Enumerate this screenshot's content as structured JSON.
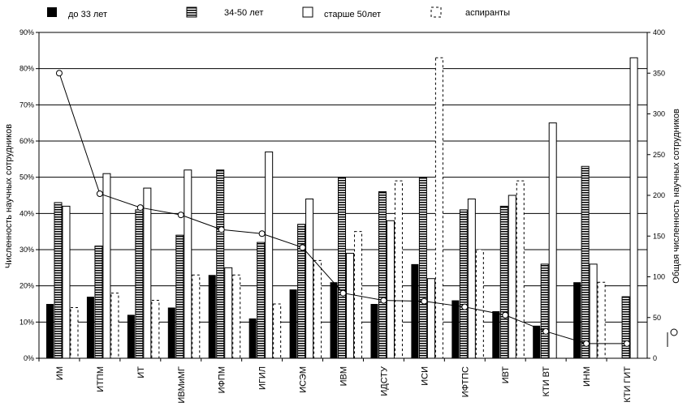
{
  "chart_data": {
    "type": "bar",
    "title": "",
    "ylabel": "Численность научных сотрудников",
    "y2label": "Общая численность научных сотрудников",
    "ylim": [
      0,
      90
    ],
    "y2lim": [
      0,
      400
    ],
    "yticks": [
      "0%",
      "10%",
      "20%",
      "30%",
      "40%",
      "50%",
      "60%",
      "70%",
      "80%",
      "90%"
    ],
    "y2ticks": [
      "0",
      "50",
      "100",
      "150",
      "200",
      "250",
      "300",
      "350",
      "400"
    ],
    "grid": true,
    "legend_position": "top",
    "categories": [
      "ИМ",
      "ИТПМ",
      "ИТ",
      "ИВМиМГ",
      "ИФПМ",
      "ИГИЛ",
      "ИСЭМ",
      "ИВМ",
      "ИДСТУ",
      "ИСИ",
      "ИФТПС",
      "ИВТ",
      "КТИ ВТ",
      "ИНМ",
      "КТИ ГИТ"
    ],
    "series": [
      {
        "name": "до 33 лет",
        "style": "solid",
        "color": "#000000",
        "values": [
          15,
          17,
          12,
          14,
          23,
          11,
          19,
          21,
          15,
          26,
          16,
          13,
          9,
          21,
          0
        ]
      },
      {
        "name": "34-50 лет",
        "style": "striped",
        "color": "#000000",
        "values": [
          43,
          31,
          41,
          34,
          52,
          32,
          37,
          50,
          46,
          50,
          41,
          42,
          26,
          53,
          17
        ]
      },
      {
        "name": "старше 50лет",
        "style": "white",
        "color": "#ffffff",
        "values": [
          42,
          51,
          47,
          52,
          25,
          57,
          44,
          29,
          38,
          22,
          44,
          45,
          65,
          26,
          83
        ]
      },
      {
        "name": "аспиранты",
        "style": "dashed",
        "color": "#ffffff",
        "values": [
          14,
          18,
          16,
          23,
          23,
          15,
          27,
          35,
          49,
          83,
          30,
          49,
          0,
          21,
          0
        ]
      }
    ],
    "line_series": {
      "name": "",
      "axis": "right",
      "values": [
        350,
        202,
        185,
        176,
        158,
        153,
        136,
        80,
        71,
        70,
        63,
        53,
        33,
        18,
        18
      ]
    }
  }
}
